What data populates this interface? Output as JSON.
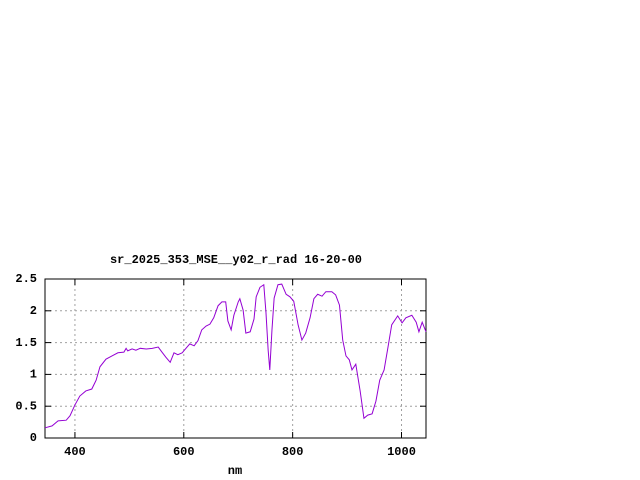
{
  "chart_data": {
    "type": "line",
    "title": "sr_2025_353_MSE__y02_r_rad 16-20-00",
    "xlabel": "nm",
    "x": [
      345,
      358,
      369,
      384,
      391,
      400,
      409,
      420,
      431,
      439,
      446,
      457,
      468,
      479,
      490,
      494,
      497,
      505,
      512,
      520,
      531,
      542,
      553,
      560,
      567,
      575,
      582,
      589,
      597,
      604,
      611,
      619,
      626,
      633,
      641,
      648,
      655,
      663,
      670,
      677,
      681,
      687,
      692,
      700,
      703,
      709,
      714,
      722,
      729,
      733,
      740,
      747,
      751,
      755,
      758,
      762,
      766,
      773,
      780,
      788,
      795,
      802,
      810,
      817,
      824,
      832,
      839,
      846,
      854,
      861,
      872,
      879,
      886,
      892,
      898,
      904,
      909,
      916,
      924,
      931,
      938,
      946,
      953,
      960,
      968,
      975,
      982,
      993,
      1001,
      1008,
      1019,
      1027,
      1032,
      1038,
      1045
    ],
    "values": [
      0.16,
      0.19,
      0.27,
      0.28,
      0.35,
      0.52,
      0.66,
      0.74,
      0.77,
      0.91,
      1.12,
      1.24,
      1.29,
      1.34,
      1.35,
      1.41,
      1.37,
      1.4,
      1.38,
      1.41,
      1.4,
      1.41,
      1.43,
      1.35,
      1.27,
      1.19,
      1.34,
      1.31,
      1.34,
      1.41,
      1.48,
      1.45,
      1.53,
      1.7,
      1.76,
      1.79,
      1.89,
      2.08,
      2.14,
      2.14,
      1.84,
      1.7,
      1.93,
      2.14,
      2.19,
      2.01,
      1.65,
      1.67,
      1.87,
      2.22,
      2.37,
      2.41,
      1.97,
      1.38,
      1.07,
      1.7,
      2.2,
      2.41,
      2.42,
      2.26,
      2.22,
      2.15,
      1.78,
      1.54,
      1.65,
      1.89,
      2.19,
      2.26,
      2.23,
      2.3,
      2.3,
      2.25,
      2.09,
      1.54,
      1.29,
      1.23,
      1.07,
      1.16,
      0.74,
      0.31,
      0.36,
      0.38,
      0.58,
      0.91,
      1.07,
      1.42,
      1.78,
      1.92,
      1.81,
      1.89,
      1.93,
      1.82,
      1.67,
      1.82,
      1.67
    ],
    "color": "#9400d3",
    "xlim": [
      345,
      1045
    ],
    "xticks": [
      400,
      600,
      800,
      1000
    ],
    "ylim": [
      0,
      2.5
    ],
    "yticks": [
      0,
      0.5,
      1,
      1.5,
      2,
      2.5
    ],
    "grid": true
  }
}
